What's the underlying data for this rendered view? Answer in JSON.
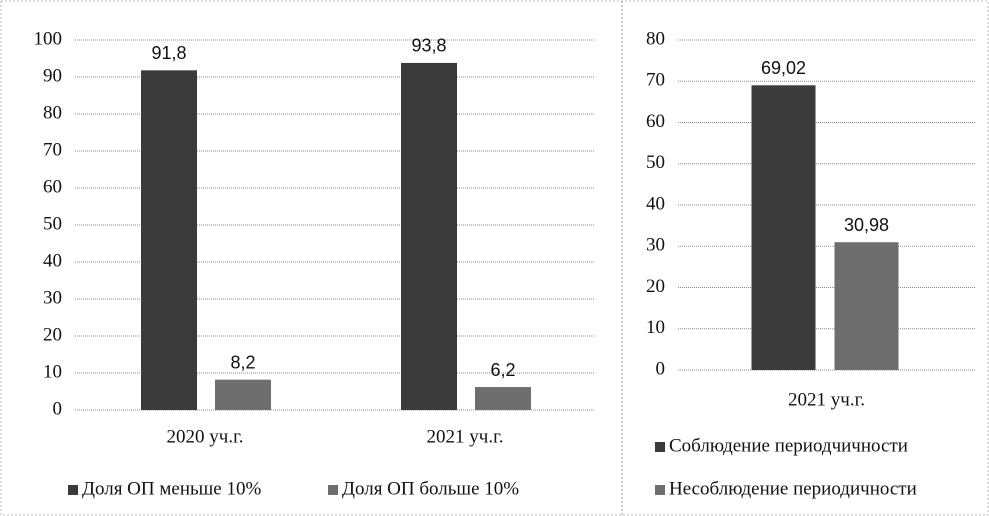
{
  "chart_data": [
    {
      "type": "bar",
      "categories": [
        "2020 уч.г.",
        "2021 уч.г."
      ],
      "series": [
        {
          "name": "Доля ОП меньше 10%",
          "color": "#3a3a3a",
          "values": [
            91.8,
            93.8
          ],
          "value_labels": [
            "91,8",
            "93,8"
          ]
        },
        {
          "name": "Доля ОП больше 10%",
          "color": "#6e6e6e",
          "values": [
            8.2,
            6.2
          ],
          "value_labels": [
            "8,2",
            "6,2"
          ]
        }
      ],
      "ylim": [
        0,
        100
      ],
      "yticks": [
        0,
        10,
        20,
        30,
        40,
        50,
        60,
        70,
        80,
        90,
        100
      ],
      "grid": true
    },
    {
      "type": "bar",
      "categories": [
        "2021 уч.г."
      ],
      "series": [
        {
          "name": "Соблюдение периодчичности",
          "color": "#3a3a3a",
          "values": [
            69.02
          ],
          "value_labels": [
            "69,02"
          ]
        },
        {
          "name": "Несоблюдение периодичности",
          "color": "#6e6e6e",
          "values": [
            30.98
          ],
          "value_labels": [
            "30,98"
          ]
        }
      ],
      "ylim": [
        0,
        80
      ],
      "yticks": [
        0,
        10,
        20,
        30,
        40,
        50,
        60,
        70,
        80
      ],
      "grid": true
    }
  ]
}
